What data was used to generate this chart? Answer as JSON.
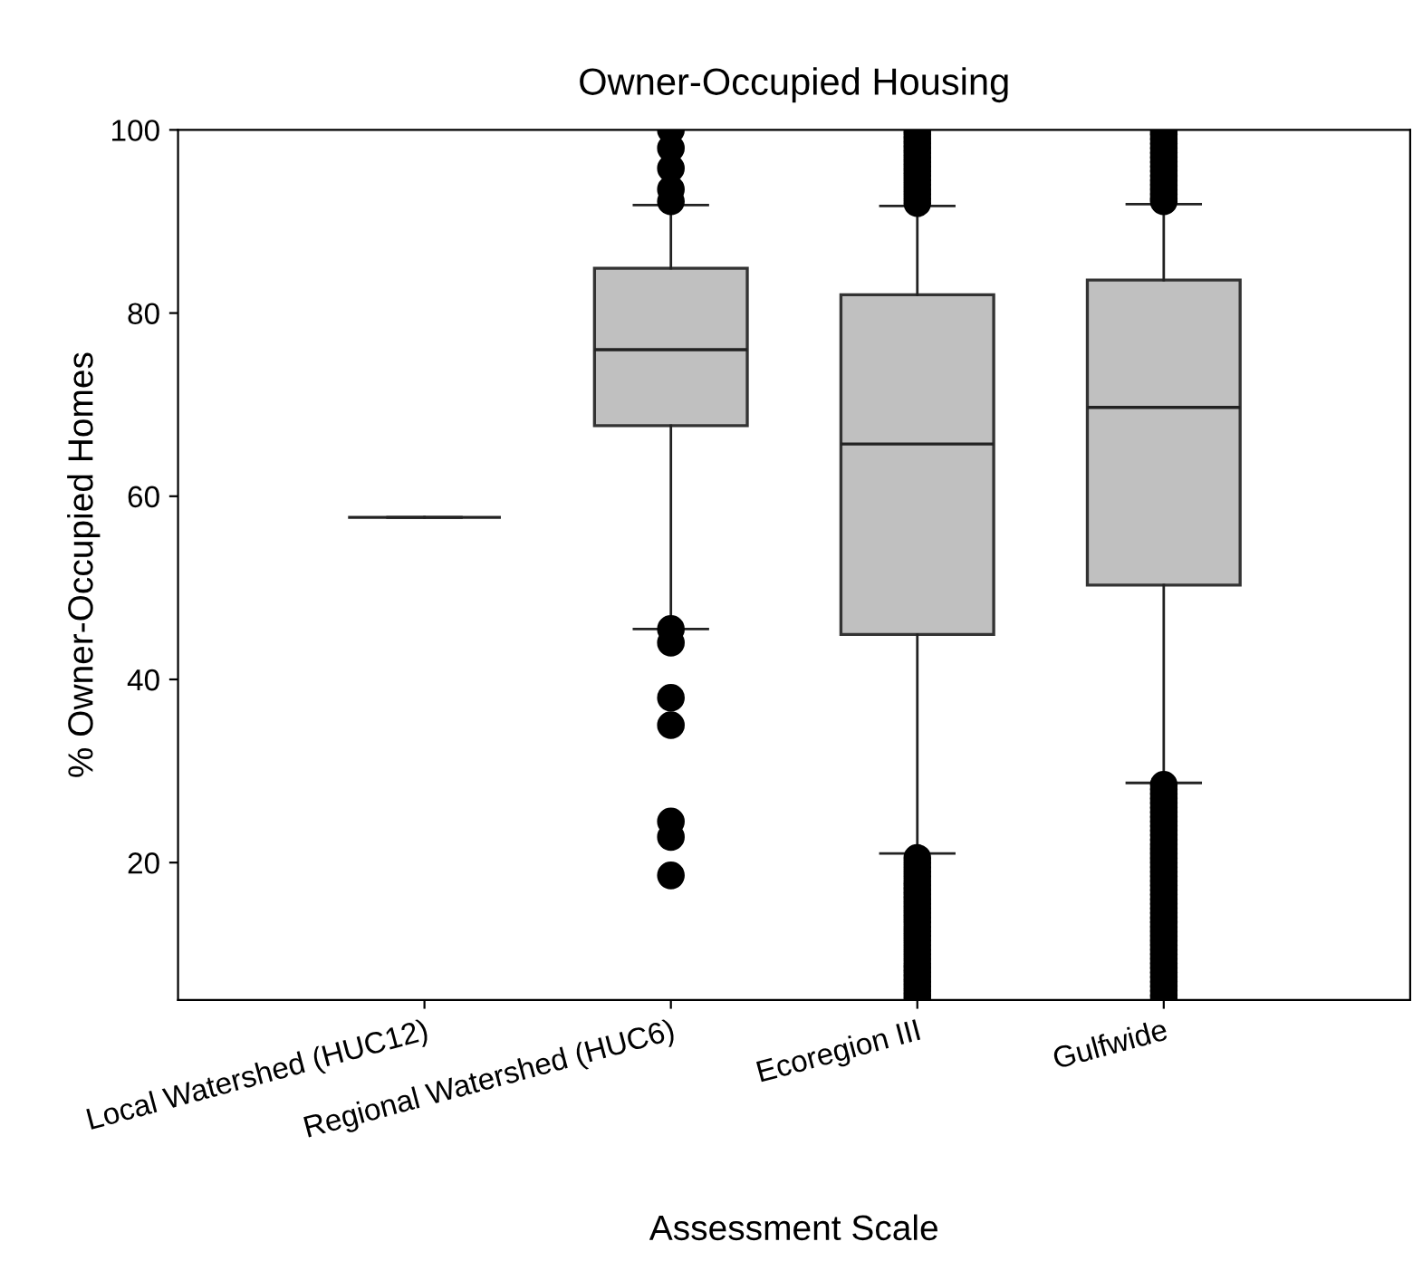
{
  "chart_data": {
    "type": "box",
    "title": "Owner-Occupied Housing",
    "xlabel": "Assessment Scale",
    "ylabel": "% Owner-Occupied Homes",
    "categories": [
      "Local Watershed (HUC12)",
      "Regional Watershed (HUC6)",
      "Ecoregion III",
      "Gulfwide"
    ],
    "colors": [
      "#222222",
      "#c0c0c0",
      "#c0c0c0",
      "#c0c0c0"
    ],
    "boxes": [
      {
        "low": 57.7,
        "q1": 57.7,
        "median": 57.7,
        "q3": 57.7,
        "high": 57.7
      },
      {
        "low": 45.5,
        "q1": 67.7,
        "median": 76,
        "q3": 84.9,
        "high": 91.8,
        "outliers": [
          100,
          98,
          95.8,
          93.5,
          92.2,
          45.5,
          44,
          38,
          35,
          24.5,
          22.8,
          18.6
        ]
      },
      {
        "low": 21.0,
        "q1": 44.9,
        "median": 65.7,
        "q3": 82,
        "high": 91.7,
        "outliers": [
          92,
          92.5,
          93,
          93.5,
          94,
          94.5,
          95,
          95.5,
          96,
          96.5,
          97,
          97.5,
          98,
          98.5,
          99,
          99.5,
          100,
          5,
          5.5,
          6,
          6.5,
          7,
          7.5,
          8,
          8.5,
          9,
          9.5,
          10,
          10.5,
          11,
          11.5,
          12,
          12.5,
          13,
          13.5,
          14,
          14.5,
          15,
          15.5,
          16,
          16.5,
          17,
          17.5,
          18,
          18.5,
          19,
          19.5,
          20,
          20.5
        ]
      },
      {
        "low": 28.7,
        "q1": 50.3,
        "median": 69.7,
        "q3": 83.6,
        "high": 91.9,
        "outliers": [
          92.2,
          92.5,
          93,
          93.5,
          94,
          94.5,
          95,
          95.5,
          96,
          96.5,
          97,
          97.5,
          98,
          98.5,
          99,
          99.5,
          100,
          5,
          5.5,
          6,
          6.5,
          7,
          7.5,
          8,
          8.5,
          9,
          9.5,
          10,
          10.5,
          11,
          11.5,
          12,
          12.5,
          13,
          13.5,
          14,
          14.5,
          15,
          15.5,
          16,
          16.5,
          17,
          17.5,
          18,
          18.5,
          19,
          19.5,
          20,
          20.5,
          21,
          21.5,
          22,
          22.5,
          23,
          23.5,
          24,
          24.5,
          25,
          25.5,
          26,
          26.5,
          27,
          27.5,
          28,
          28.5
        ]
      }
    ],
    "ylim": [
      5,
      100
    ],
    "yticks": [
      20,
      40,
      60,
      80,
      100
    ],
    "grid": false,
    "legend": false
  }
}
